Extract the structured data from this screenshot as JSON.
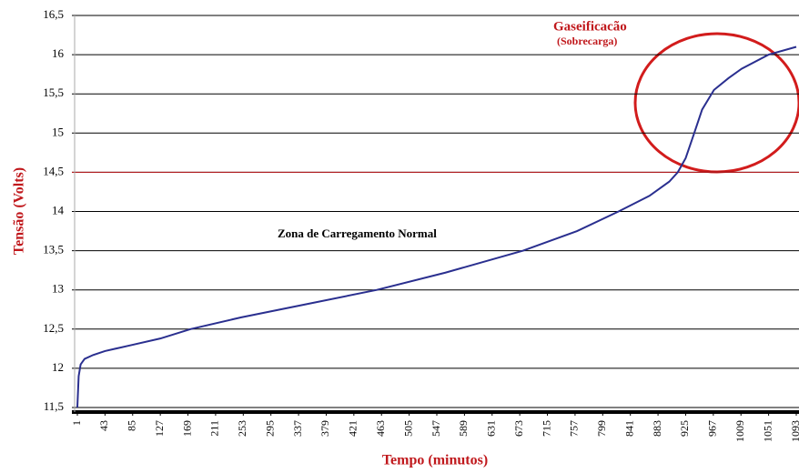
{
  "chart_data": {
    "type": "line",
    "y_label": "Tensão (Volts)",
    "x_label": "Tempo (minutos)",
    "annotations": [
      "Gaseificacão",
      "(Sobrecarga)",
      "Zona de Carregamento Normal"
    ],
    "threshold": 14.5,
    "threshold_color": "#c0181c",
    "x": [
      1,
      3,
      6,
      12,
      25,
      43,
      85,
      127,
      173,
      250,
      350,
      456,
      560,
      678,
      760,
      823,
      870,
      900,
      913,
      925,
      938,
      950,
      968,
      990,
      1010,
      1051,
      1093
    ],
    "series": [
      {
        "color": "#2a2f8f",
        "values": [
          11.5,
          11.9,
          12.05,
          12.12,
          12.17,
          12.22,
          12.3,
          12.38,
          12.5,
          12.65,
          12.82,
          13,
          13.22,
          13.5,
          13.75,
          14,
          14.2,
          14.38,
          14.5,
          14.68,
          15,
          15.3,
          15.55,
          15.7,
          15.82,
          16,
          16.1
        ]
      }
    ],
    "xlim": [
      1,
      1093
    ],
    "xticks": [
      1,
      43,
      85,
      127,
      169,
      211,
      253,
      295,
      337,
      379,
      421,
      463,
      505,
      547,
      589,
      631,
      673,
      715,
      757,
      799,
      841,
      883,
      925,
      967,
      1009,
      1051,
      1093
    ],
    "ylim": [
      11.5,
      16.5
    ],
    "yticks": [
      {
        "value": 11.5,
        "label": "11,5"
      },
      12,
      {
        "value": 12.5,
        "label": "12,5"
      },
      13,
      {
        "value": 13.5,
        "label": "13,5"
      },
      14,
      {
        "value": 14.5,
        "label": "14,5"
      },
      15,
      {
        "value": 15.5,
        "label": "15,5"
      },
      16,
      {
        "value": 16.5,
        "label": "16,5"
      }
    ],
    "grid": true
  }
}
